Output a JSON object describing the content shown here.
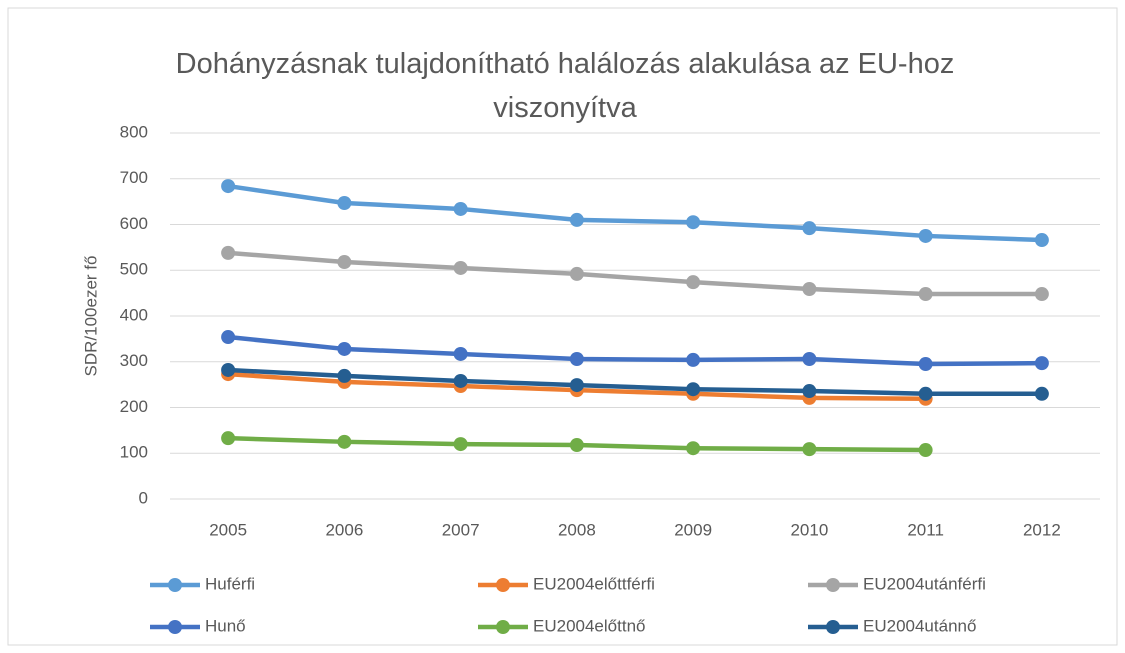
{
  "chart_data": {
    "type": "line",
    "title": "Dohányzásnak tulajdonítható halálozás alakulása az EU-hoz viszonyítva",
    "y_label": "SDR/100ezer fő",
    "categories": [
      "2005",
      "2006",
      "2007",
      "2008",
      "2009",
      "2010",
      "2011",
      "2012"
    ],
    "series": [
      {
        "name": "Huférfi",
        "color": "#5b9bd5",
        "values": [
          684,
          647,
          634,
          610,
          605,
          592,
          575,
          566
        ]
      },
      {
        "name": "EU2004előttférfi",
        "color": "#ed7d31",
        "values": [
          273,
          256,
          247,
          238,
          230,
          221,
          219,
          null
        ]
      },
      {
        "name": "EU2004utánférfi",
        "color": "#a5a5a5",
        "values": [
          538,
          518,
          505,
          492,
          474,
          459,
          448,
          448
        ]
      },
      {
        "name": "Hunő",
        "color": "#4472c4",
        "values": [
          354,
          328,
          317,
          306,
          304,
          306,
          295,
          297
        ]
      },
      {
        "name": "EU2004előttnő",
        "color": "#70ad47",
        "values": [
          133,
          125,
          120,
          118,
          111,
          109,
          107,
          null
        ]
      },
      {
        "name": "EU2004utánnő",
        "color": "#255e91",
        "values": [
          282,
          269,
          258,
          249,
          240,
          236,
          230,
          230
        ]
      }
    ],
    "ylim": [
      0,
      800
    ],
    "yticks": [
      0,
      100,
      200,
      300,
      400,
      500,
      600,
      700,
      800
    ],
    "grid": true,
    "legend": "bottom"
  }
}
